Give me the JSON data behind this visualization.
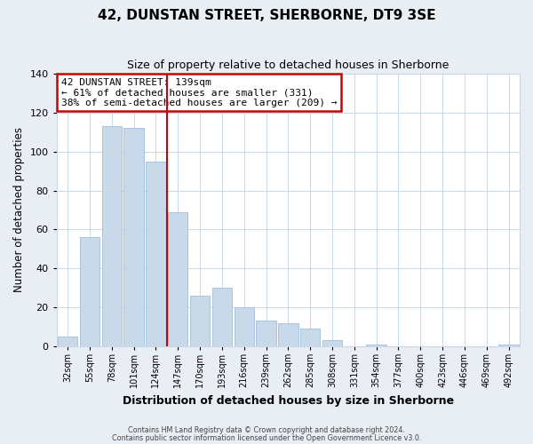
{
  "title": "42, DUNSTAN STREET, SHERBORNE, DT9 3SE",
  "subtitle": "Size of property relative to detached houses in Sherborne",
  "xlabel": "Distribution of detached houses by size in Sherborne",
  "ylabel": "Number of detached properties",
  "categories": [
    "32sqm",
    "55sqm",
    "78sqm",
    "101sqm",
    "124sqm",
    "147sqm",
    "170sqm",
    "193sqm",
    "216sqm",
    "239sqm",
    "262sqm",
    "285sqm",
    "308sqm",
    "331sqm",
    "354sqm",
    "377sqm",
    "400sqm",
    "423sqm",
    "446sqm",
    "469sqm",
    "492sqm"
  ],
  "values": [
    5,
    56,
    113,
    112,
    95,
    69,
    26,
    30,
    20,
    13,
    12,
    9,
    3,
    0,
    1,
    0,
    0,
    0,
    0,
    0,
    1
  ],
  "bar_color": "#c8daea",
  "bar_edge_color": "#a0bedc",
  "highlight_line_index": 5,
  "highlight_line_color": "#cc0000",
  "annotation_title": "42 DUNSTAN STREET: 139sqm",
  "annotation_line1": "← 61% of detached houses are smaller (331)",
  "annotation_line2": "38% of semi-detached houses are larger (209) →",
  "annotation_box_color": "#ffffff",
  "annotation_box_edge": "#cc0000",
  "ylim": [
    0,
    140
  ],
  "yticks": [
    0,
    20,
    40,
    60,
    80,
    100,
    120,
    140
  ],
  "footer1": "Contains HM Land Registry data © Crown copyright and database right 2024.",
  "footer2": "Contains public sector information licensed under the Open Government Licence v3.0.",
  "bg_color": "#e8eef4",
  "plot_bg_color": "#ffffff",
  "grid_color": "#c8d8e8"
}
